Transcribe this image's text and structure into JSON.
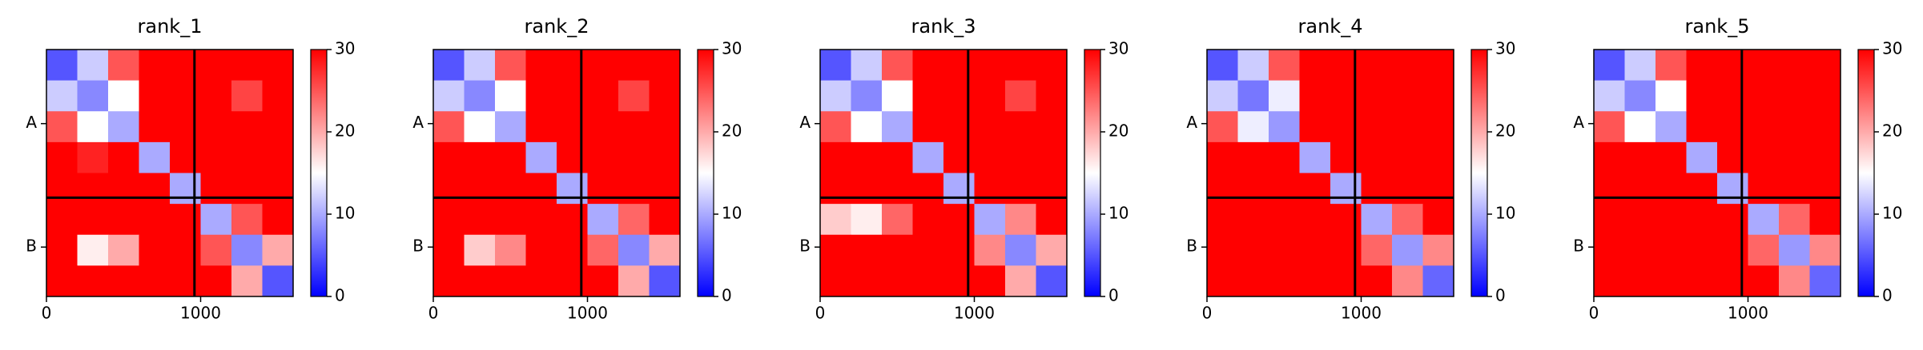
{
  "chart_data": [
    {
      "type": "heatmap",
      "title": "rank_1",
      "xlim": [
        0,
        1600
      ],
      "xticks": [
        0,
        1000
      ],
      "ylim": [
        1600,
        0
      ],
      "yticks": [
        {
          "value": 480,
          "label": "A"
        },
        {
          "value": 1280,
          "label": "B"
        }
      ],
      "chain_breaks": [
        960
      ],
      "clim": [
        0,
        30
      ],
      "cticks": [
        0,
        10,
        20,
        30
      ],
      "colormap": [
        "#0000ff",
        "#ffffff",
        "#ff0000"
      ],
      "values": [
        [
          5,
          12,
          25,
          30,
          30,
          30,
          30,
          30
        ],
        [
          12,
          8,
          15,
          30,
          30,
          30,
          26,
          30
        ],
        [
          25,
          15,
          10,
          30,
          30,
          30,
          30,
          30
        ],
        [
          30,
          28,
          30,
          10,
          30,
          30,
          30,
          30
        ],
        [
          30,
          30,
          30,
          30,
          10,
          30,
          30,
          30
        ],
        [
          30,
          30,
          30,
          30,
          30,
          10,
          25,
          30
        ],
        [
          30,
          16,
          20,
          30,
          30,
          25,
          8,
          20
        ],
        [
          30,
          30,
          30,
          30,
          30,
          30,
          20,
          5
        ]
      ]
    },
    {
      "type": "heatmap",
      "title": "rank_2",
      "xlim": [
        0,
        1600
      ],
      "xticks": [
        0,
        1000
      ],
      "ylim": [
        1600,
        0
      ],
      "yticks": [
        {
          "value": 480,
          "label": "A"
        },
        {
          "value": 1280,
          "label": "B"
        }
      ],
      "chain_breaks": [
        960
      ],
      "clim": [
        0,
        30
      ],
      "cticks": [
        0,
        10,
        20,
        30
      ],
      "colormap": [
        "#0000ff",
        "#ffffff",
        "#ff0000"
      ],
      "values": [
        [
          5,
          12,
          25,
          30,
          30,
          30,
          30,
          30
        ],
        [
          12,
          8,
          15,
          30,
          30,
          30,
          26,
          30
        ],
        [
          25,
          15,
          10,
          30,
          30,
          30,
          30,
          30
        ],
        [
          30,
          30,
          30,
          10,
          30,
          30,
          30,
          30
        ],
        [
          30,
          30,
          30,
          30,
          10,
          30,
          30,
          30
        ],
        [
          30,
          30,
          30,
          30,
          30,
          10,
          24,
          30
        ],
        [
          30,
          18,
          22,
          30,
          30,
          24,
          8,
          20
        ],
        [
          30,
          30,
          30,
          30,
          30,
          30,
          20,
          5
        ]
      ]
    },
    {
      "type": "heatmap",
      "title": "rank_3",
      "xlim": [
        0,
        1600
      ],
      "xticks": [
        0,
        1000
      ],
      "ylim": [
        1600,
        0
      ],
      "yticks": [
        {
          "value": 480,
          "label": "A"
        },
        {
          "value": 1280,
          "label": "B"
        }
      ],
      "chain_breaks": [
        960
      ],
      "clim": [
        0,
        30
      ],
      "cticks": [
        0,
        10,
        20,
        30
      ],
      "colormap": [
        "#0000ff",
        "#ffffff",
        "#ff0000"
      ],
      "values": [
        [
          5,
          12,
          25,
          30,
          30,
          30,
          30,
          30
        ],
        [
          12,
          8,
          15,
          30,
          30,
          30,
          26,
          30
        ],
        [
          25,
          15,
          10,
          30,
          30,
          30,
          30,
          30
        ],
        [
          30,
          30,
          30,
          10,
          30,
          30,
          30,
          30
        ],
        [
          30,
          30,
          30,
          30,
          10,
          30,
          30,
          30
        ],
        [
          18,
          16,
          24,
          30,
          30,
          10,
          22,
          30
        ],
        [
          30,
          30,
          30,
          30,
          30,
          22,
          8,
          20
        ],
        [
          30,
          30,
          30,
          30,
          30,
          30,
          20,
          5
        ]
      ]
    },
    {
      "type": "heatmap",
      "title": "rank_4",
      "xlim": [
        0,
        1600
      ],
      "xticks": [
        0,
        1000
      ],
      "ylim": [
        1600,
        0
      ],
      "yticks": [
        {
          "value": 480,
          "label": "A"
        },
        {
          "value": 1280,
          "label": "B"
        }
      ],
      "chain_breaks": [
        960
      ],
      "clim": [
        0,
        30
      ],
      "cticks": [
        0,
        10,
        20,
        30
      ],
      "colormap": [
        "#0000ff",
        "#ffffff",
        "#ff0000"
      ],
      "values": [
        [
          5,
          12,
          25,
          30,
          30,
          30,
          30,
          30
        ],
        [
          12,
          7,
          14,
          30,
          30,
          30,
          30,
          30
        ],
        [
          25,
          14,
          9,
          30,
          30,
          30,
          30,
          30
        ],
        [
          30,
          30,
          30,
          10,
          30,
          30,
          30,
          30
        ],
        [
          30,
          30,
          30,
          30,
          10,
          30,
          30,
          30
        ],
        [
          30,
          30,
          30,
          30,
          30,
          10,
          24,
          30
        ],
        [
          30,
          30,
          30,
          30,
          30,
          24,
          9,
          22
        ],
        [
          30,
          30,
          30,
          30,
          30,
          30,
          22,
          6
        ]
      ]
    },
    {
      "type": "heatmap",
      "title": "rank_5",
      "xlim": [
        0,
        1600
      ],
      "xticks": [
        0,
        1000
      ],
      "ylim": [
        1600,
        0
      ],
      "yticks": [
        {
          "value": 480,
          "label": "A"
        },
        {
          "value": 1280,
          "label": "B"
        }
      ],
      "chain_breaks": [
        960
      ],
      "clim": [
        0,
        30
      ],
      "cticks": [
        0,
        10,
        20,
        30
      ],
      "colormap": [
        "#0000ff",
        "#ffffff",
        "#ff0000"
      ],
      "values": [
        [
          5,
          12,
          25,
          30,
          30,
          30,
          30,
          30
        ],
        [
          12,
          8,
          15,
          30,
          30,
          30,
          30,
          30
        ],
        [
          25,
          15,
          10,
          30,
          30,
          30,
          30,
          30
        ],
        [
          30,
          30,
          30,
          10,
          30,
          30,
          30,
          30
        ],
        [
          30,
          30,
          30,
          30,
          10,
          30,
          30,
          30
        ],
        [
          30,
          30,
          30,
          30,
          30,
          10,
          24,
          30
        ],
        [
          30,
          30,
          30,
          30,
          30,
          24,
          9,
          22
        ],
        [
          30,
          30,
          30,
          30,
          30,
          30,
          22,
          6
        ]
      ]
    }
  ]
}
